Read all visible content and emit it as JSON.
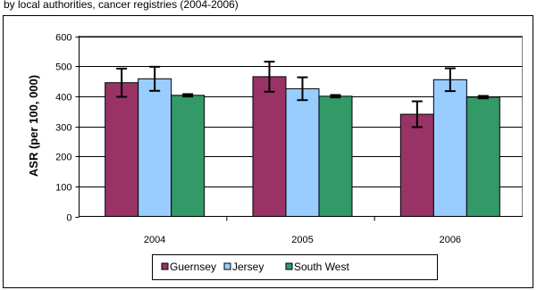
{
  "partial_title": "by local authorities, cancer registries (2004-2006)",
  "chart_data": {
    "type": "bar",
    "title": "",
    "xlabel": "",
    "ylabel": "ASR (per 100, 000)",
    "ylim": [
      0,
      600
    ],
    "yticks": [
      0,
      100,
      200,
      300,
      400,
      500,
      600
    ],
    "grid": true,
    "legend_position": "bottom",
    "categories": [
      "2004",
      "2005",
      "2006"
    ],
    "series": [
      {
        "name": "Guernsey",
        "color": "#993366",
        "values": [
          445,
          465,
          340
        ],
        "error_low": [
          398,
          415,
          297
        ],
        "error_high": [
          492,
          515,
          383
        ]
      },
      {
        "name": "Jersey",
        "color": "#99ccff",
        "values": [
          458,
          425,
          455
        ],
        "error_low": [
          418,
          387,
          417
        ],
        "error_high": [
          498,
          463,
          493
        ]
      },
      {
        "name": "South West",
        "color": "#339966",
        "values": [
          403,
          400,
          397
        ],
        "error_low": [
          399,
          396,
          393
        ],
        "error_high": [
          407,
          404,
          401
        ]
      }
    ]
  }
}
